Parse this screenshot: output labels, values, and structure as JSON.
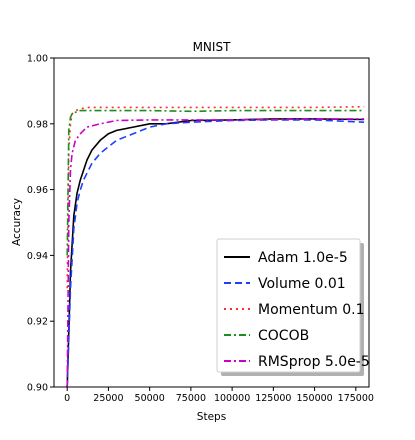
{
  "chart_data": {
    "type": "line",
    "title": "MNIST",
    "xlabel": "Steps",
    "ylabel": "Accuracy",
    "xlim": [
      -8000,
      183000
    ],
    "ylim": [
      0.9,
      1.0
    ],
    "xticks": [
      0,
      25000,
      50000,
      75000,
      100000,
      125000,
      150000,
      175000
    ],
    "xtick_labels": [
      "0",
      "25000",
      "50000",
      "75000",
      "100000",
      "125000",
      "150000",
      "175000"
    ],
    "yticks": [
      0.9,
      0.92,
      0.94,
      0.96,
      0.98,
      1.0
    ],
    "ytick_labels": [
      "0.90",
      "0.92",
      "0.94",
      "0.96",
      "0.98",
      "1.00"
    ],
    "grid": false,
    "legend_position": "bottom-right",
    "series": [
      {
        "name": "Adam 1.0e-5",
        "color": "#000000",
        "dash": "solid",
        "x": [
          0,
          2000,
          4000,
          6000,
          8000,
          10000,
          12000,
          15000,
          20000,
          25000,
          30000,
          40000,
          50000,
          60000,
          75000,
          100000,
          125000,
          150000,
          180000
        ],
        "y": [
          0.9,
          0.935,
          0.952,
          0.959,
          0.963,
          0.966,
          0.969,
          0.972,
          0.975,
          0.977,
          0.978,
          0.979,
          0.98,
          0.98,
          0.981,
          0.9812,
          0.9815,
          0.9815,
          0.9813
        ]
      },
      {
        "name": "Volume 0.01",
        "color": "#1f3fff",
        "dash": "dashed",
        "x": [
          0,
          2000,
          4000,
          6000,
          8000,
          10000,
          12000,
          15000,
          20000,
          25000,
          30000,
          40000,
          50000,
          60000,
          75000,
          100000,
          125000,
          150000,
          180000
        ],
        "y": [
          0.9,
          0.93,
          0.948,
          0.956,
          0.96,
          0.963,
          0.965,
          0.968,
          0.971,
          0.973,
          0.975,
          0.977,
          0.979,
          0.98,
          0.9805,
          0.981,
          0.9812,
          0.9812,
          0.9805
        ]
      },
      {
        "name": "Momentum 0.1",
        "color": "#ff2a2a",
        "dash": "dotted",
        "x": [
          0,
          1000,
          2000,
          3000,
          5000,
          8000,
          12000,
          20000,
          30000,
          50000,
          75000,
          100000,
          125000,
          150000,
          180000
        ],
        "y": [
          0.93,
          0.972,
          0.98,
          0.983,
          0.984,
          0.9845,
          0.985,
          0.985,
          0.985,
          0.985,
          0.985,
          0.985,
          0.985,
          0.985,
          0.9852
        ]
      },
      {
        "name": "COCOB",
        "color": "#1a8f1a",
        "dash": "dashdot",
        "x": [
          0,
          1000,
          2000,
          3000,
          5000,
          8000,
          12000,
          20000,
          30000,
          50000,
          75000,
          100000,
          125000,
          150000,
          180000
        ],
        "y": [
          0.94,
          0.978,
          0.982,
          0.983,
          0.9835,
          0.984,
          0.984,
          0.984,
          0.984,
          0.984,
          0.9838,
          0.984,
          0.984,
          0.984,
          0.984
        ]
      },
      {
        "name": "RMSprop 5.0e-5",
        "color": "#cc00cc",
        "dash": "dashdot",
        "x": [
          0,
          1000,
          2000,
          3000,
          5000,
          8000,
          12000,
          20000,
          30000,
          50000,
          75000,
          100000,
          125000,
          150000,
          180000
        ],
        "y": [
          0.9,
          0.95,
          0.966,
          0.971,
          0.975,
          0.977,
          0.979,
          0.98,
          0.981,
          0.9812,
          0.9812,
          0.9812,
          0.9813,
          0.9815,
          0.9815
        ]
      }
    ]
  }
}
